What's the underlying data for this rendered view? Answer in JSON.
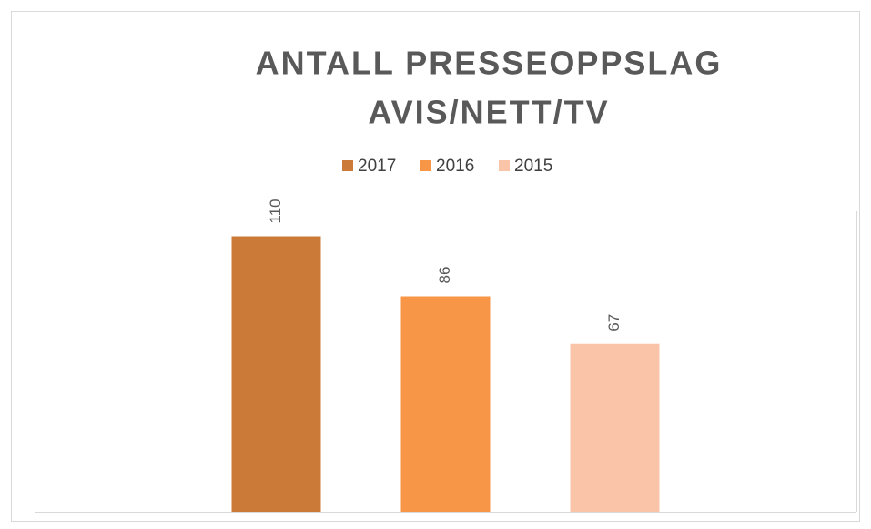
{
  "chart_data": {
    "type": "bar",
    "title": [
      "ANTALL PRESSEOPPSLAG",
      "AVIS/NETT/TV"
    ],
    "categories": [
      null
    ],
    "series": [
      {
        "name": "2017",
        "color": "#cc7a37",
        "values": [
          110
        ]
      },
      {
        "name": "2016",
        "color": "#f79646",
        "values": [
          86
        ]
      },
      {
        "name": "2015",
        "color": "#f9c4a8",
        "values": [
          67
        ]
      }
    ],
    "ylim": [
      0,
      120
    ],
    "legend": "top"
  }
}
